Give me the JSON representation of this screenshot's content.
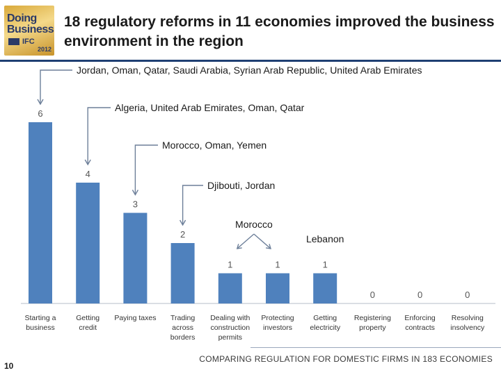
{
  "logo": {
    "line1": "Doing",
    "line2": "Business",
    "line3": "IFC",
    "year": "2012"
  },
  "title": "18 regulatory reforms in 11 economies improved the business environment in the region",
  "page_number": "10",
  "footer": "COMPARING REGULATION FOR DOMESTIC FIRMS IN 183 ECONOMIES",
  "colors": {
    "bar": "#4f81bd",
    "title_rule": "#1f3f73",
    "callout_line": "#6d7f99",
    "axis": "#b5bdc9"
  },
  "chart_data": {
    "type": "bar",
    "categories": [
      "Starting a business",
      "Getting credit",
      "Paying taxes",
      "Trading across borders",
      "Dealing with construction permits",
      "Protecting investors",
      "Getting electricity",
      "Registering property",
      "Enforcing contracts",
      "Resolving insolvency"
    ],
    "values": [
      6,
      4,
      3,
      2,
      1,
      1,
      1,
      0,
      0,
      0
    ],
    "data_labels": [
      "6",
      "4",
      "3",
      "2",
      "1",
      "1",
      "1",
      "0",
      "0",
      "0"
    ],
    "ylim": [
      0,
      6
    ],
    "grid": false,
    "annotations": [
      {
        "text": "Jordan, Oman, Qatar, Saudi Arabia, Syrian Arab Republic, United Arab Emirates",
        "category": "Starting a business"
      },
      {
        "text": "Algeria, United Arab Emirates, Oman, Qatar",
        "category": "Getting credit"
      },
      {
        "text": "Morocco, Oman, Yemen",
        "category": "Paying taxes"
      },
      {
        "text": "Djibouti, Jordan",
        "category": "Trading across borders"
      },
      {
        "text": "Morocco",
        "category": "Dealing with construction permits"
      },
      {
        "text": "Lebanon",
        "category": "Getting electricity"
      }
    ]
  }
}
